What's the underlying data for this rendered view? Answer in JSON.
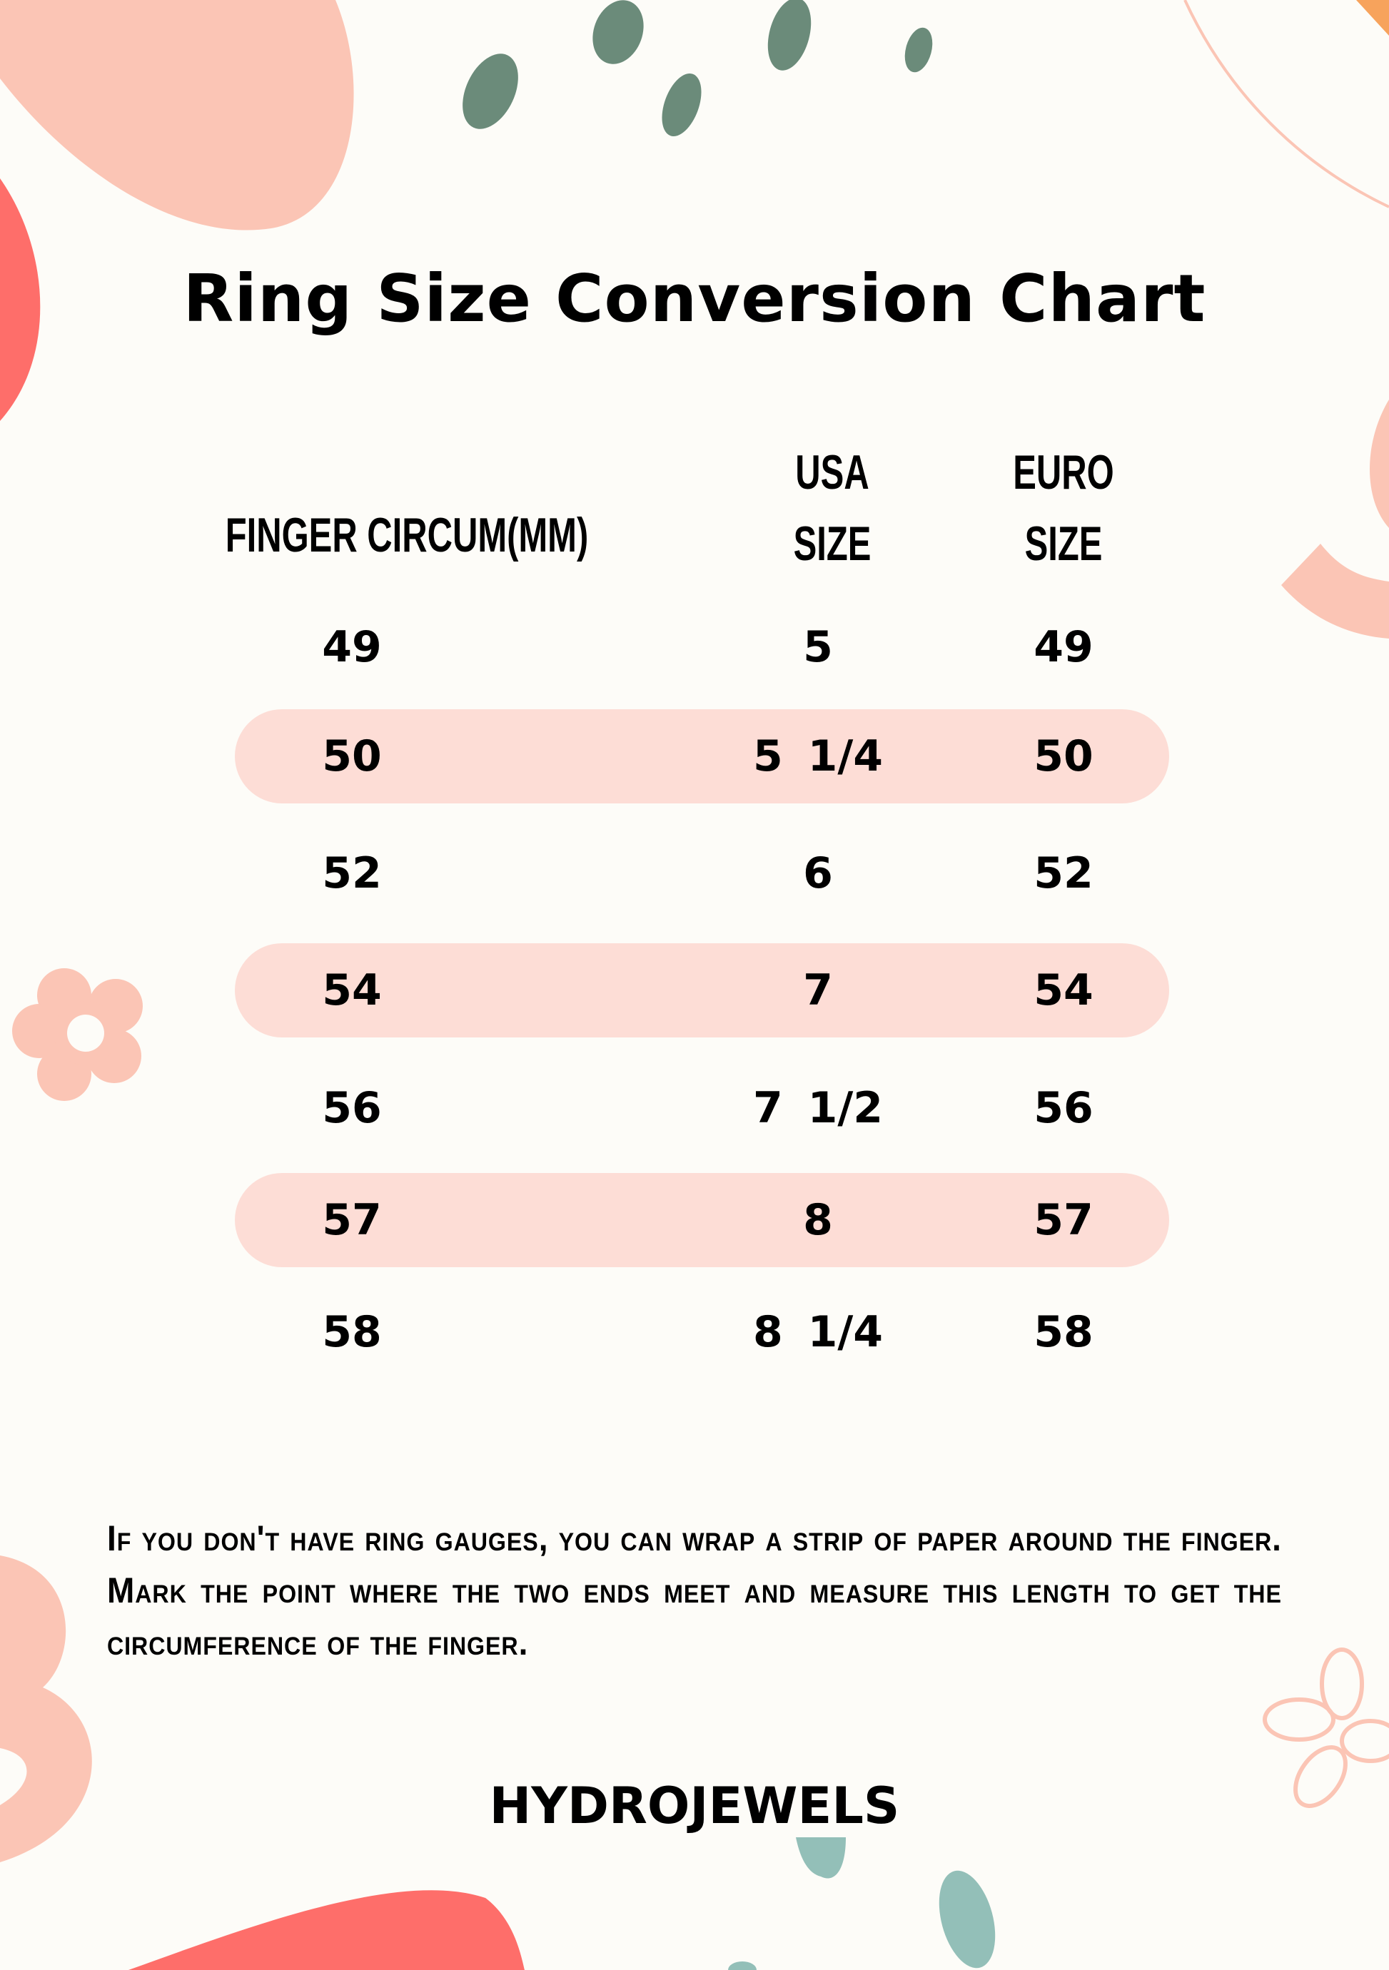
{
  "title": "Ring Size Conversion Chart",
  "headers": {
    "finger": "FINGER CIRCUM(MM)",
    "usa_line1": "USA",
    "usa_line2": "SIZE",
    "euro_line1": "EURO",
    "euro_line2": "SIZE"
  },
  "rows": [
    {
      "finger": "49",
      "usa": "5",
      "euro": "49",
      "highlighted": false
    },
    {
      "finger": "50",
      "usa": "5 1/4",
      "euro": "50",
      "highlighted": true
    },
    {
      "finger": "52",
      "usa": "6",
      "euro": "52",
      "highlighted": false
    },
    {
      "finger": "54",
      "usa": "7",
      "euro": "54",
      "highlighted": true
    },
    {
      "finger": "56",
      "usa": "7 1/2",
      "euro": "56",
      "highlighted": false
    },
    {
      "finger": "57",
      "usa": "8",
      "euro": "57",
      "highlighted": true
    },
    {
      "finger": "58",
      "usa": "8 1/4",
      "euro": "58",
      "highlighted": false
    }
  ],
  "instructions": "If you don't have ring gauges, you can wrap a strip of paper around the finger. Mark the point where the two ends meet and measure this length to get the circumference of the finger.",
  "brand": "HYDROJEWELS",
  "colors": {
    "background": "#fdfcf8",
    "band": "#fdddd6",
    "peach": "#fbc5b5",
    "coral": "#fe6e6a",
    "green": "#6b8b7a",
    "teal": "#93bfb8",
    "orange": "#f7a35c"
  }
}
